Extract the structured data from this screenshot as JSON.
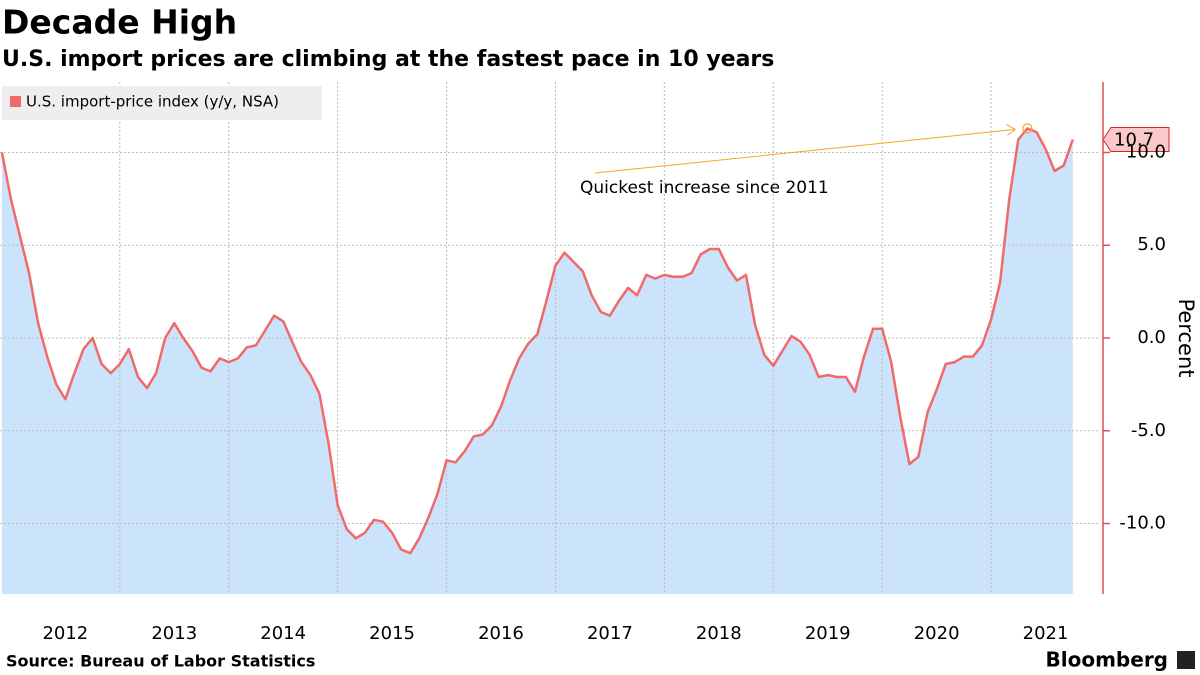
{
  "chart_data": {
    "type": "area-line",
    "title": "Decade High",
    "subtitle": "U.S. import prices are climbing at the fastest pace in 10 years",
    "source": "Source: Bureau of Labor Statistics",
    "brand": "Bloomberg",
    "ylabel": "Percent",
    "annotation": "Quickest increase since 2011",
    "legend": "top-left",
    "area_color": "#cce4fb",
    "x": [
      2011.917,
      2012.0,
      2012.083,
      2012.167,
      2012.25,
      2012.333,
      2012.417,
      2012.5,
      2012.583,
      2012.667,
      2012.75,
      2012.833,
      2012.917,
      2013.0,
      2013.083,
      2013.167,
      2013.25,
      2013.333,
      2013.417,
      2013.5,
      2013.583,
      2013.667,
      2013.75,
      2013.833,
      2013.917,
      2014.0,
      2014.083,
      2014.167,
      2014.25,
      2014.333,
      2014.417,
      2014.5,
      2014.583,
      2014.667,
      2014.75,
      2014.833,
      2014.917,
      2015.0,
      2015.083,
      2015.167,
      2015.25,
      2015.333,
      2015.417,
      2015.5,
      2015.583,
      2015.667,
      2015.75,
      2015.833,
      2015.917,
      2016.0,
      2016.083,
      2016.167,
      2016.25,
      2016.333,
      2016.417,
      2016.5,
      2016.583,
      2016.667,
      2016.75,
      2016.833,
      2016.917,
      2017.0,
      2017.083,
      2017.167,
      2017.25,
      2017.333,
      2017.417,
      2017.5,
      2017.583,
      2017.667,
      2017.75,
      2017.833,
      2017.917,
      2018.0,
      2018.083,
      2018.167,
      2018.25,
      2018.333,
      2018.417,
      2018.5,
      2018.583,
      2018.667,
      2018.75,
      2018.833,
      2018.917,
      2019.0,
      2019.083,
      2019.167,
      2019.25,
      2019.333,
      2019.417,
      2019.5,
      2019.583,
      2019.667,
      2019.75,
      2019.833,
      2019.917,
      2020.0,
      2020.083,
      2020.167,
      2020.25,
      2020.333,
      2020.417,
      2020.5,
      2020.583,
      2020.667,
      2020.75,
      2020.833,
      2020.917,
      2021.0,
      2021.083,
      2021.167,
      2021.25,
      2021.333,
      2021.417,
      2021.5,
      2021.583,
      2021.667,
      2021.75
    ],
    "series": [
      {
        "name": "U.S. import-price index (y/y, NSA)",
        "color": "#f06a6a",
        "values": [
          10,
          7.5,
          5.5,
          3.5,
          0.8,
          -1,
          -2.5,
          -3.3,
          -1.9,
          -0.6,
          0,
          -1.4,
          -1.9,
          -1.4,
          -0.6,
          -2.1,
          -2.7,
          -1.9,
          0,
          0.8,
          0,
          -0.7,
          -1.6,
          -1.8,
          -1.1,
          -1.3,
          -1.1,
          -0.5,
          -0.4,
          0.4,
          1.2,
          0.9,
          -0.2,
          -1.3,
          -2,
          -3,
          -5.7,
          -9,
          -10.3,
          -10.8,
          -10.5,
          -9.8,
          -9.9,
          -10.5,
          -11.4,
          -11.6,
          -10.8,
          -9.7,
          -8.4,
          -6.6,
          -6.7,
          -6.1,
          -5.3,
          -5.2,
          -4.7,
          -3.7,
          -2.3,
          -1.1,
          -0.3,
          0.2,
          2,
          3.9,
          4.6,
          4.1,
          3.6,
          2.3,
          1.4,
          1.2,
          2,
          2.7,
          2.3,
          3.4,
          3.2,
          3.4,
          3.3,
          3.3,
          3.5,
          4.5,
          4.8,
          4.8,
          3.8,
          3.1,
          3.4,
          0.7,
          -0.9,
          -1.5,
          -0.7,
          0.1,
          -0.2,
          -0.9,
          -2.1,
          -2,
          -2.1,
          -2.1,
          -2.9,
          -1,
          0.5,
          0.5,
          -1.3,
          -4.3,
          -6.8,
          -6.4,
          -4,
          -2.8,
          -1.4,
          -1.3,
          -1,
          -1,
          -0.4,
          1,
          3,
          7.5,
          10.7,
          11.3,
          11.1,
          10.2,
          9,
          9.3,
          10.7
        ]
      }
    ],
    "xlim": [
      2011.9,
      2022.0
    ],
    "xticks": [
      {
        "value": 2012.5,
        "label": "2012"
      },
      {
        "value": 2013.5,
        "label": "2013"
      },
      {
        "value": 2014.5,
        "label": "2014"
      },
      {
        "value": 2015.5,
        "label": "2015"
      },
      {
        "value": 2016.5,
        "label": "2016"
      },
      {
        "value": 2017.5,
        "label": "2017"
      },
      {
        "value": 2018.5,
        "label": "2018"
      },
      {
        "value": 2019.5,
        "label": "2019"
      },
      {
        "value": 2020.5,
        "label": "2020"
      },
      {
        "value": 2021.5,
        "label": "2021"
      }
    ],
    "xgrid": [
      2013,
      2014,
      2015,
      2016,
      2017,
      2018,
      2019,
      2020,
      2021
    ],
    "ylim": [
      -13.8,
      13.8
    ],
    "yticks": [
      {
        "value": 10,
        "label": "10.0"
      },
      {
        "value": 5,
        "label": "5.0"
      },
      {
        "value": 0,
        "label": "0.0"
      },
      {
        "value": -5,
        "label": "-5.0"
      },
      {
        "value": -10,
        "label": "-10.0"
      }
    ],
    "grid": true
  }
}
